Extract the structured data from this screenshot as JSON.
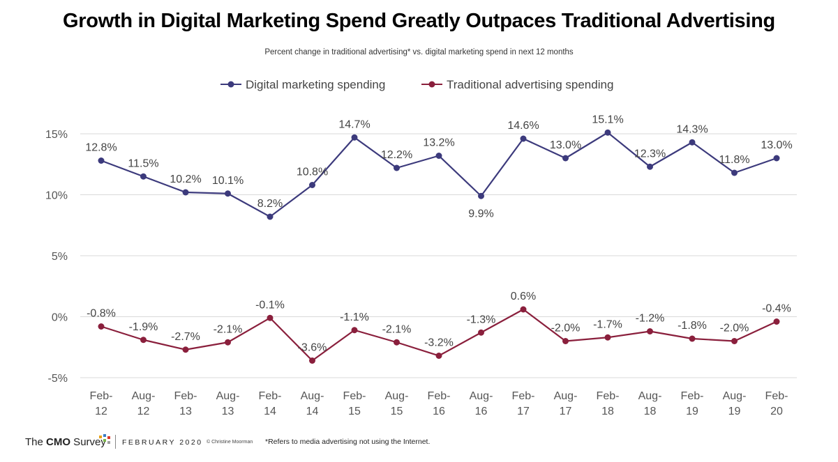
{
  "header": {
    "title": "Growth in Digital Marketing Spend Greatly Outpaces Traditional Advertising",
    "subtitle": "Percent change in traditional advertising* vs. digital marketing spend in next 12 months"
  },
  "chart_data": {
    "type": "line",
    "title": "Growth in Digital Marketing Spend Greatly Outpaces Traditional Advertising",
    "subtitle": "Percent change in traditional advertising* vs. digital marketing spend in next 12 months",
    "categories": [
      [
        "Feb-",
        "12"
      ],
      [
        "Aug-",
        "12"
      ],
      [
        "Feb-",
        "13"
      ],
      [
        "Aug-",
        "13"
      ],
      [
        "Feb-",
        "14"
      ],
      [
        "Aug-",
        "14"
      ],
      [
        "Feb-",
        "15"
      ],
      [
        "Aug-",
        "15"
      ],
      [
        "Feb-",
        "16"
      ],
      [
        "Aug-",
        "16"
      ],
      [
        "Feb-",
        "17"
      ],
      [
        "Aug-",
        "17"
      ],
      [
        "Feb-",
        "18"
      ],
      [
        "Aug-",
        "18"
      ],
      [
        "Feb-",
        "19"
      ],
      [
        "Aug-",
        "19"
      ],
      [
        "Feb-",
        "20"
      ]
    ],
    "series": [
      {
        "name": "Digital marketing spending",
        "color": "#3c3a7c",
        "values": [
          12.8,
          11.5,
          10.2,
          10.1,
          8.2,
          10.8,
          14.7,
          12.2,
          13.2,
          9.9,
          14.6,
          13.0,
          15.1,
          12.3,
          14.3,
          11.8,
          13.0
        ],
        "labels": [
          "12.8%",
          "11.5%",
          "10.2%",
          "10.1%",
          "8.2%",
          "10.8%",
          "14.7%",
          "12.2%",
          "13.2%",
          "9.9%",
          "14.6%",
          "13.0%",
          "15.1%",
          "12.3%",
          "14.3%",
          "11.8%",
          "13.0%"
        ],
        "label_positions": [
          "above",
          "above",
          "above",
          "above",
          "above",
          "above",
          "above",
          "above",
          "above",
          "below",
          "above",
          "above",
          "above",
          "above",
          "above",
          "above",
          "above"
        ]
      },
      {
        "name": "Traditional advertising spending",
        "color": "#8a1f3c",
        "values": [
          -0.8,
          -1.9,
          -2.7,
          -2.1,
          -0.1,
          -3.6,
          -1.1,
          -2.1,
          -3.2,
          -1.3,
          0.6,
          -2.0,
          -1.7,
          -1.2,
          -1.8,
          -2.0,
          -0.4
        ],
        "labels": [
          "-0.8%",
          "-1.9%",
          "-2.7%",
          "-2.1%",
          "-0.1%",
          "-3.6%",
          "-1.1%",
          "-2.1%",
          "-3.2%",
          "-1.3%",
          "0.6%",
          "-2.0%",
          "-1.7%",
          "-1.2%",
          "-1.8%",
          "-2.0%",
          "-0.4%"
        ],
        "label_positions": [
          "above",
          "above",
          "above",
          "above",
          "above",
          "above",
          "above",
          "above",
          "above",
          "above",
          "above",
          "above",
          "above",
          "above",
          "above",
          "above",
          "above"
        ]
      }
    ],
    "yticks": [
      15,
      10,
      5,
      0,
      -5
    ],
    "ytick_labels": [
      "15%",
      "10%",
      "5%",
      "0%",
      "-5%"
    ],
    "ylim": [
      -5,
      15
    ],
    "grid": true,
    "legend_position": "top-center"
  },
  "footer": {
    "brand_prefix": "The ",
    "brand_bold": "CMO",
    "brand_suffix": " Survey",
    "brand_colors": [
      "#e8a317",
      "#3b7dc4",
      "#d9382c",
      "#7ab648",
      "#9e9e9e"
    ],
    "date": "FEBRUARY 2020",
    "copyright": "© Christine Moorman",
    "note": "*Refers to media advertising not using the Internet."
  }
}
